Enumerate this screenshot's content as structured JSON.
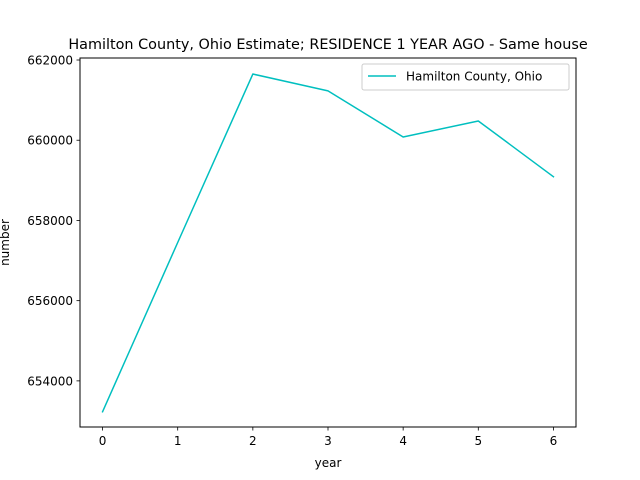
{
  "chart_data": {
    "type": "line",
    "title": "Hamilton County, Ohio Estimate; RESIDENCE 1 YEAR AGO - Same house",
    "xlabel": "year",
    "ylabel": "number",
    "x": [
      0,
      1,
      2,
      3,
      4,
      5,
      6
    ],
    "xlim": [
      -0.3,
      6.3
    ],
    "ylim": [
      652850,
      662050
    ],
    "x_ticks": [
      "0",
      "1",
      "2",
      "3",
      "4",
      "5",
      "6"
    ],
    "y_ticks": [
      "654000",
      "656000",
      "658000",
      "660000",
      "662000"
    ],
    "grid": false,
    "legend_position": "top-right",
    "series": [
      {
        "name": "Hamilton County, Ohio",
        "color": "#00bfbf",
        "values": [
          653230,
          657450,
          661650,
          661230,
          660080,
          660480,
          659090
        ]
      }
    ]
  }
}
